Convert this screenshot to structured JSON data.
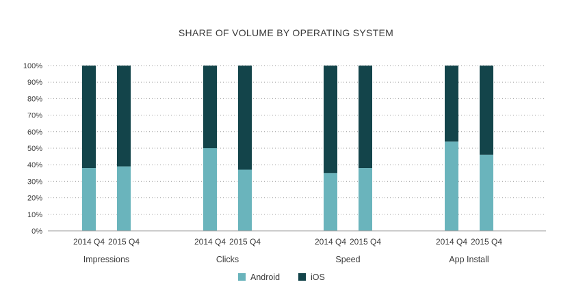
{
  "chart_data": {
    "type": "bar",
    "stacked": true,
    "percent": true,
    "title": "SHARE OF VOLUME BY OPERATING SYSTEM",
    "groups": [
      {
        "label": "Impressions",
        "categories": [
          "2014 Q4",
          "2015 Q4"
        ]
      },
      {
        "label": "Clicks",
        "categories": [
          "2014 Q4",
          "2015 Q4"
        ]
      },
      {
        "label": "Speed",
        "categories": [
          "2014 Q4",
          "2015 Q4"
        ]
      },
      {
        "label": "App Install",
        "categories": [
          "2014 Q4",
          "2015 Q4"
        ]
      }
    ],
    "series": [
      {
        "name": "Android",
        "color": "#6ab4bc",
        "values": [
          38,
          39,
          50,
          37,
          35,
          38,
          54,
          46
        ]
      },
      {
        "name": "iOS",
        "color": "#13444a",
        "values": [
          62,
          61,
          50,
          63,
          65,
          62,
          46,
          54
        ]
      }
    ],
    "y_ticks": [
      "0%",
      "10%",
      "20%",
      "30%",
      "40%",
      "50%",
      "60%",
      "70%",
      "80%",
      "90%",
      "100%"
    ],
    "ylim": [
      0,
      100
    ],
    "grid": true,
    "legend_position": "bottom"
  }
}
